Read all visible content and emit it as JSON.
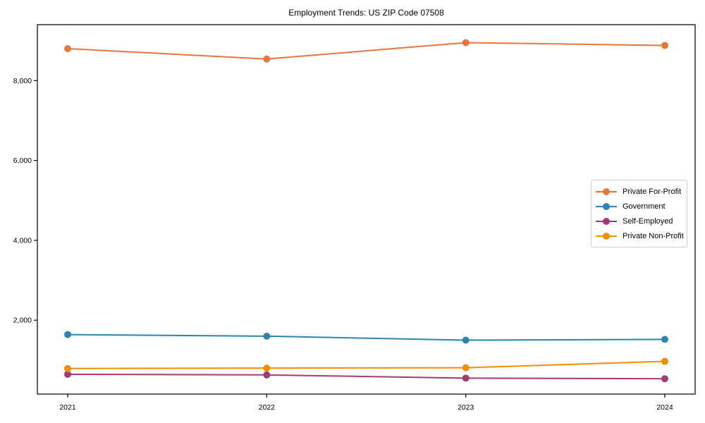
{
  "figure": {
    "title": "Employment Trends: US ZIP Code 07508"
  },
  "chart_data": {
    "type": "line",
    "title": "Employment Trends: US ZIP Code 07508",
    "xlabel": "",
    "ylabel": "",
    "categories": [
      "2021",
      "2022",
      "2023",
      "2024"
    ],
    "series": [
      {
        "name": "Private For-Profit",
        "color": "#E8763C",
        "values": [
          8800,
          8540,
          8950,
          8880
        ]
      },
      {
        "name": "Government",
        "color": "#2E86AB",
        "values": [
          1640,
          1600,
          1500,
          1520
        ]
      },
      {
        "name": "Self-Employed",
        "color": "#A23B72",
        "values": [
          645,
          630,
          550,
          535
        ]
      },
      {
        "name": "Private Non-Profit",
        "color": "#F18F01",
        "values": [
          790,
          800,
          810,
          970
        ]
      }
    ],
    "ylim": [
      150,
      9400
    ],
    "yticks": [
      2000,
      4000,
      6000,
      8000
    ],
    "ytick_labels": [
      "2,000",
      "4,000",
      "6,000",
      "8,000"
    ],
    "grid": false,
    "legend_position": "center right",
    "marker": "circle",
    "axes_box": true,
    "colors": {
      "axis": "#000000",
      "background": "#ffffff",
      "legend_border": "#cccccc"
    }
  }
}
